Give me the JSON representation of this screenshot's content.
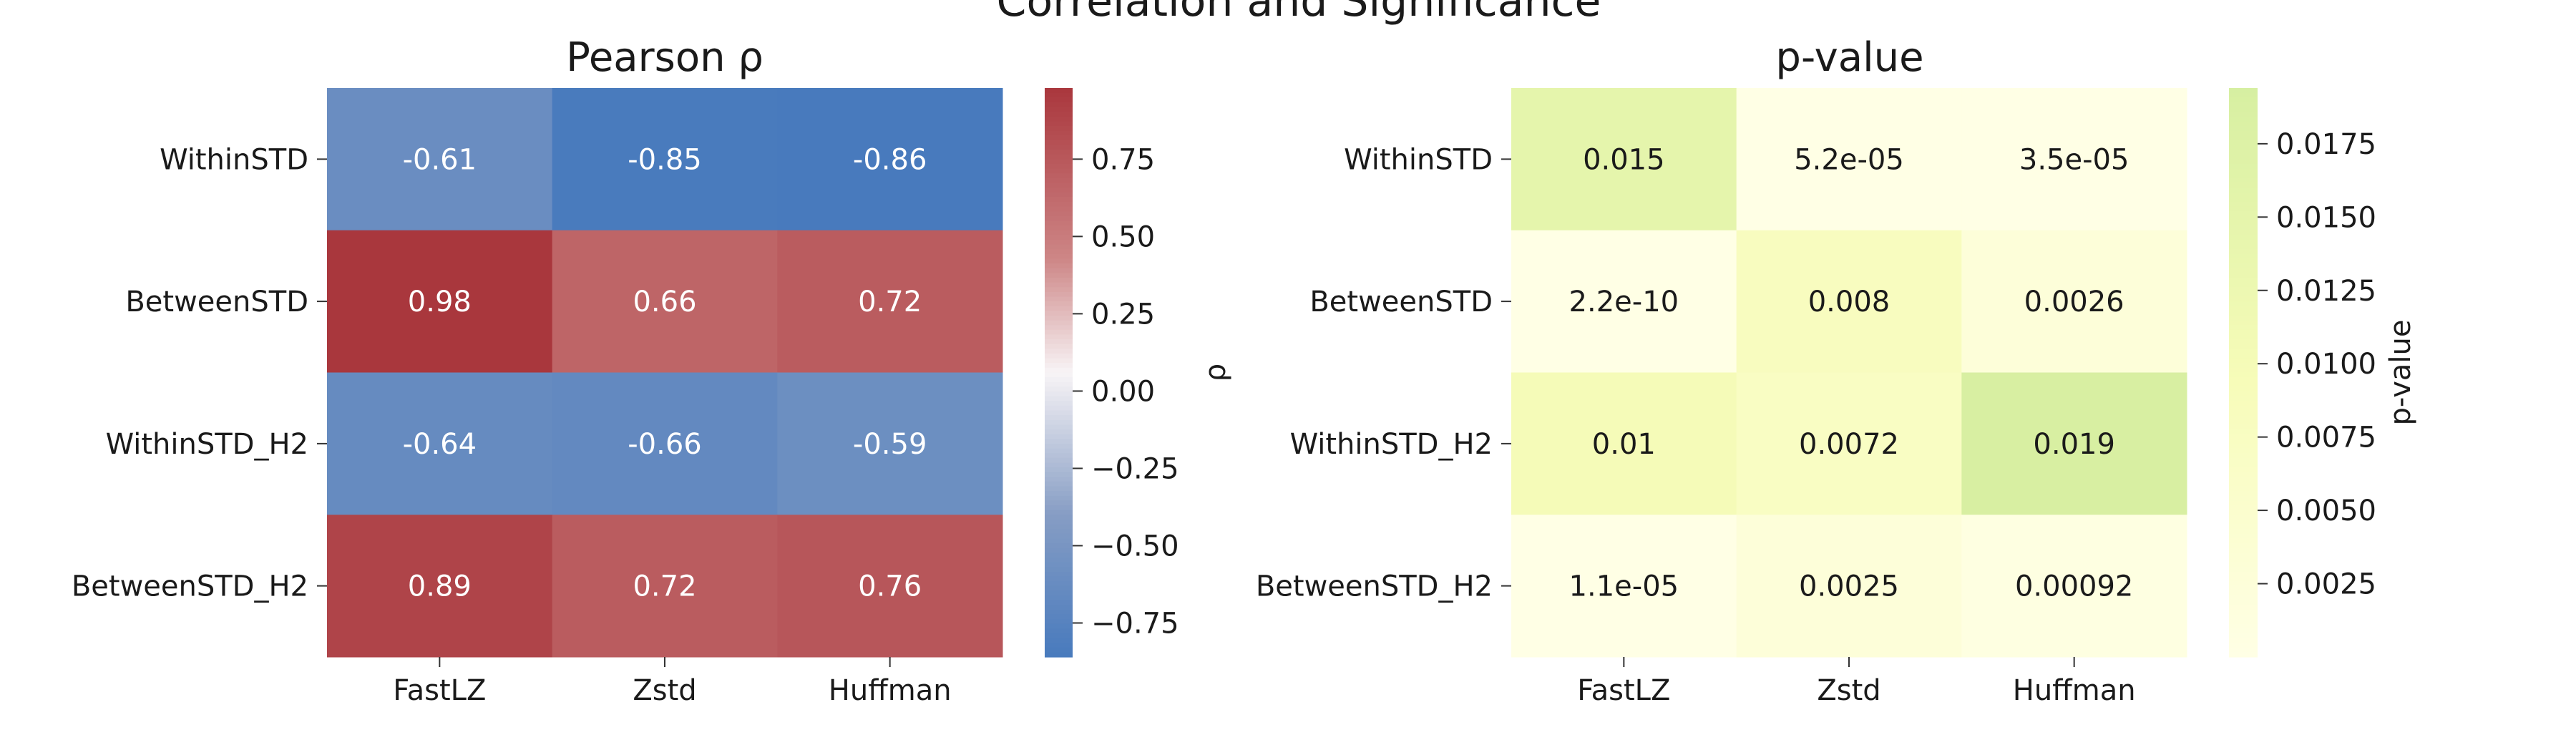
{
  "figure": {
    "suptitle": "Correlation and Significance"
  },
  "chart_data": [
    {
      "type": "heatmap",
      "title": "Pearson ρ",
      "rows": [
        "WithinSTD",
        "BetweenSTD",
        "WithinSTD_H2",
        "BetweenSTD_H2"
      ],
      "columns": [
        "FastLZ",
        "Zstd",
        "Huffman"
      ],
      "values": [
        [
          -0.61,
          -0.85,
          -0.86
        ],
        [
          0.98,
          0.66,
          0.72
        ],
        [
          -0.64,
          -0.66,
          -0.59
        ],
        [
          0.89,
          0.72,
          0.76
        ]
      ],
      "annotations": [
        [
          "-0.61",
          "-0.85",
          "-0.86"
        ],
        [
          "0.98",
          "0.66",
          "0.72"
        ],
        [
          "-0.64",
          "-0.66",
          "-0.59"
        ],
        [
          "0.89",
          "0.72",
          "0.76"
        ]
      ],
      "colormap": "vlag",
      "vlim": [
        -0.86,
        0.98
      ],
      "colorbar": {
        "label": "ρ",
        "ticks": [
          0.75,
          0.5,
          0.25,
          0.0,
          -0.25,
          -0.5,
          -0.75
        ],
        "tick_labels": [
          "0.75",
          "0.50",
          "0.25",
          "0.00",
          "−0.25",
          "−0.50",
          "−0.75"
        ]
      }
    },
    {
      "type": "heatmap",
      "title": "p-value",
      "rows": [
        "WithinSTD",
        "BetweenSTD",
        "WithinSTD_H2",
        "BetweenSTD_H2"
      ],
      "columns": [
        "FastLZ",
        "Zstd",
        "Huffman"
      ],
      "values": [
        [
          0.015,
          5.2e-05,
          3.5e-05
        ],
        [
          2.2e-10,
          0.008,
          0.0026
        ],
        [
          0.01,
          0.0072,
          0.019
        ],
        [
          1.1e-05,
          0.0025,
          0.00092
        ]
      ],
      "annotations": [
        [
          "0.015",
          "5.2e-05",
          "3.5e-05"
        ],
        [
          "2.2e-10",
          "0.008",
          "0.0026"
        ],
        [
          "0.01",
          "0.0072",
          "0.019"
        ],
        [
          "1.1e-05",
          "0.0025",
          "0.00092"
        ]
      ],
      "colormap": "YlGn",
      "vlim": [
        0.0,
        0.075
      ],
      "colorbar": {
        "label": "p-value",
        "range": [
          0.0,
          0.0194
        ],
        "ticks": [
          0.0175,
          0.015,
          0.0125,
          0.01,
          0.0075,
          0.005,
          0.0025
        ],
        "tick_labels": [
          "0.0175",
          "0.0150",
          "0.0125",
          "0.0100",
          "0.0075",
          "0.0050",
          "0.0025"
        ]
      }
    }
  ]
}
